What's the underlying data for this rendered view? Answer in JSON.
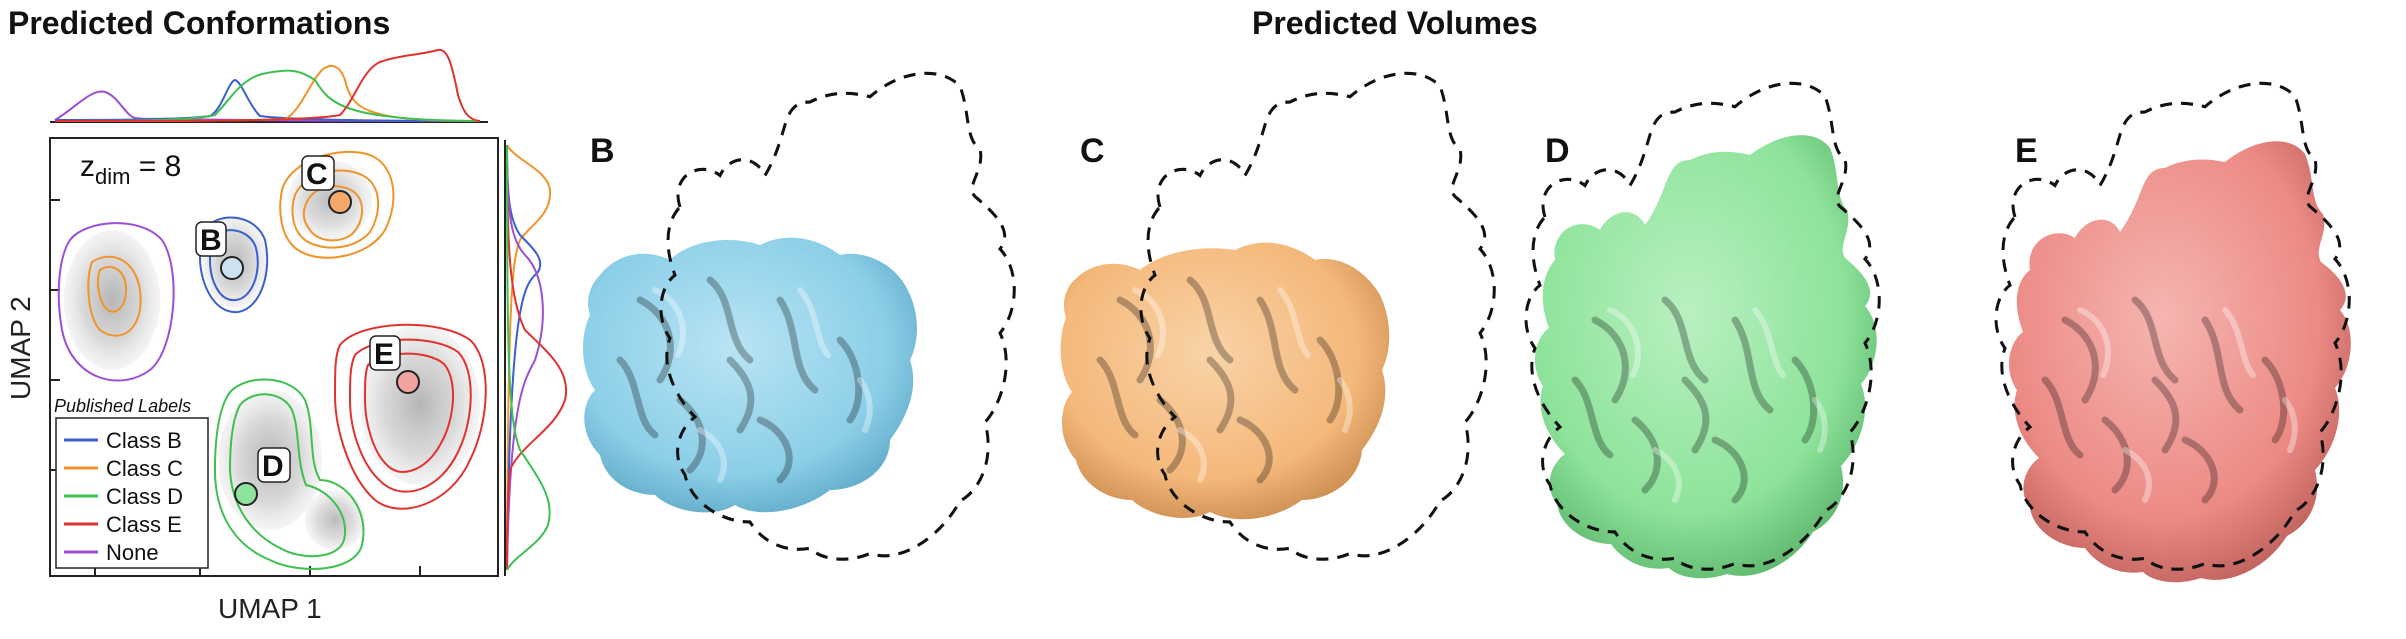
{
  "titles": {
    "left": "Predicted Conformations",
    "right": "Predicted Volumes"
  },
  "umap": {
    "xlabel": "UMAP 1",
    "ylabel": "UMAP 2",
    "zdim_base": "z",
    "zdim_sub": "dim",
    "zdim_value": " = 8",
    "cluster_labels": [
      "B",
      "C",
      "D",
      "E"
    ],
    "legend": {
      "title": "Published Labels",
      "items": [
        {
          "label": "Class B",
          "color": "#3b5fcf"
        },
        {
          "label": "Class C",
          "color": "#f0932b"
        },
        {
          "label": "Class D",
          "color": "#3fbf4f"
        },
        {
          "label": "Class E",
          "color": "#e0322f"
        },
        {
          "label": "None",
          "color": "#9b4fd6"
        }
      ]
    }
  },
  "volumes": [
    {
      "label": "B",
      "color": "#8ccfe8"
    },
    {
      "label": "C",
      "color": "#f4b87a"
    },
    {
      "label": "D",
      "color": "#8de39a"
    },
    {
      "label": "E",
      "color": "#ec8a85"
    }
  ]
}
